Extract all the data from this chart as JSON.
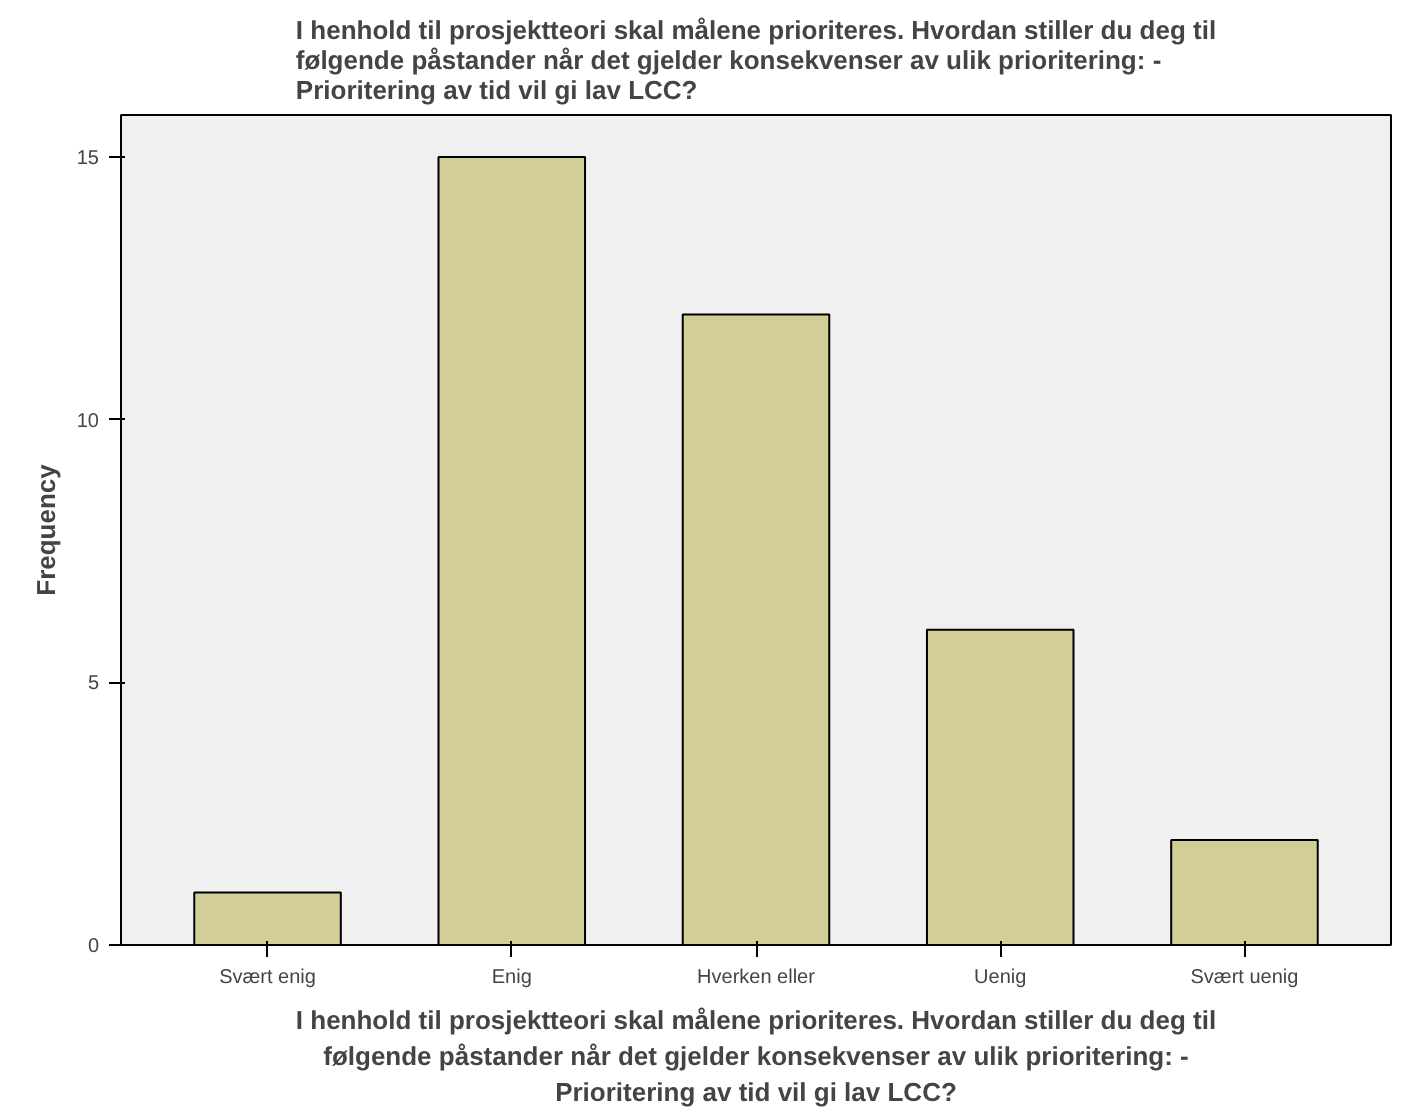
{
  "chart_data": {
    "type": "bar",
    "title": "I henhold til prosjektteori skal målene prioriteres. Hvordan stiller du deg til\nfølgende påstander når det gjelder konsekvenser av ulik prioritering: -\nPrioritering av tid vil gi lav LCC?",
    "xlabel": "I henhold til prosjektteori skal målene prioriteres. Hvordan stiller du deg til\nfølgende påstander når det gjelder konsekvenser av ulik prioritering: -\nPrioritering av tid vil gi lav LCC?",
    "ylabel": "Frequency",
    "categories": [
      "Svært enig",
      "Enig",
      "Hverken eller",
      "Uenig",
      "Svært uenig"
    ],
    "values": [
      1,
      15,
      12,
      6,
      2
    ],
    "color": "#d3ce97",
    "ylim": [
      0,
      15.8
    ],
    "yticks": [
      0,
      5,
      10,
      15
    ],
    "grid": false
  }
}
